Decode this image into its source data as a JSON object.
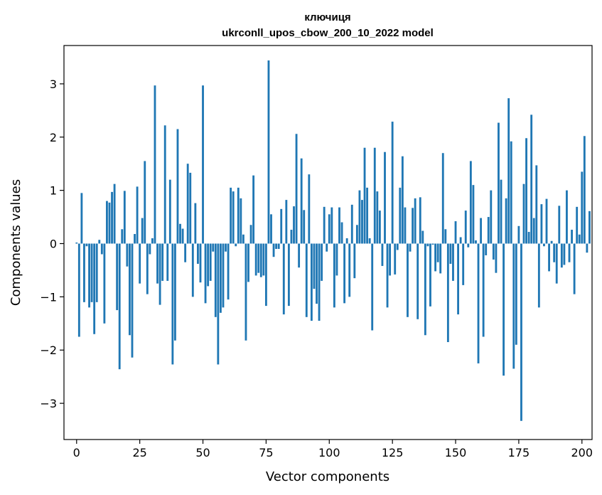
{
  "chart_data": {
    "type": "bar",
    "title": "ключиця",
    "subtitle": "ukrconll_upos_cbow_200_10_2022 model",
    "xlabel": "Vector components",
    "ylabel": "Components values",
    "xlim": [
      -5,
      204
    ],
    "ylim": [
      -3.68,
      3.72
    ],
    "xticks": [
      0,
      25,
      50,
      75,
      100,
      125,
      150,
      175,
      200
    ],
    "yticks": [
      -3,
      -2,
      -1,
      0,
      1,
      2,
      3
    ],
    "grid": false,
    "color": "#1f77b4",
    "values": [
      0.02,
      -1.75,
      0.95,
      -1.1,
      -0.05,
      -1.2,
      -1.1,
      -1.7,
      -1.1,
      0.07,
      -0.2,
      -1.5,
      0.8,
      0.77,
      0.97,
      1.12,
      -1.25,
      -2.36,
      0.27,
      0.99,
      -0.43,
      -1.72,
      -2.14,
      0.18,
      1.07,
      -0.75,
      0.48,
      1.55,
      -0.95,
      -0.2,
      0.1,
      2.97,
      -0.75,
      -1.15,
      -0.7,
      2.22,
      -0.7,
      1.2,
      -2.27,
      -1.82,
      2.15,
      0.37,
      0.28,
      -0.35,
      1.5,
      1.33,
      -1.0,
      0.76,
      -0.38,
      -0.73,
      2.97,
      -1.12,
      -0.8,
      -0.7,
      -0.15,
      -1.38,
      -2.27,
      -1.3,
      -1.2,
      -0.15,
      -1.05,
      1.05,
      0.98,
      -0.05,
      1.05,
      0.85,
      0.17,
      -1.82,
      -0.72,
      0.35,
      1.28,
      -0.6,
      -0.55,
      -0.63,
      -0.6,
      -1.17,
      3.44,
      0.55,
      -0.25,
      -0.1,
      -0.1,
      0.65,
      -1.33,
      0.82,
      -1.17,
      0.26,
      0.7,
      2.06,
      -0.45,
      1.6,
      0.63,
      -1.38,
      1.3,
      -1.45,
      -0.85,
      -1.13,
      -1.45,
      -0.7,
      0.69,
      -0.15,
      0.55,
      0.68,
      -1.2,
      -0.6,
      0.68,
      0.4,
      -1.12,
      0.1,
      -1.0,
      0.73,
      -0.65,
      0.35,
      1.0,
      0.82,
      1.8,
      1.05,
      0.1,
      -1.63,
      1.8,
      0.98,
      0.62,
      -0.42,
      1.72,
      -1.2,
      -0.6,
      2.29,
      -0.58,
      -0.12,
      1.05,
      1.64,
      0.68,
      -1.38,
      -0.15,
      0.67,
      0.85,
      -1.42,
      0.87,
      0.24,
      -1.72,
      -0.05,
      -1.18,
      -0.02,
      -0.52,
      -0.35,
      -0.56,
      1.7,
      0.27,
      -1.85,
      -0.38,
      -0.7,
      0.42,
      -1.33,
      0.12,
      -0.78,
      0.62,
      -0.07,
      1.55,
      1.1,
      0.06,
      -2.25,
      0.48,
      -1.75,
      -0.22,
      0.5,
      1.0,
      -0.3,
      -0.55,
      2.27,
      1.2,
      -2.48,
      0.85,
      2.73,
      1.92,
      -2.35,
      -1.9,
      0.33,
      -3.33,
      1.12,
      1.98,
      0.22,
      2.42,
      0.48,
      1.47,
      -1.2,
      0.74,
      -0.05,
      0.84,
      -0.52,
      0.05,
      -0.35,
      -0.75,
      0.71,
      -0.45,
      -0.4,
      1.0,
      -0.35,
      0.26,
      -0.95,
      0.69,
      0.17,
      1.35,
      2.02,
      -0.17,
      0.61
    ]
  }
}
